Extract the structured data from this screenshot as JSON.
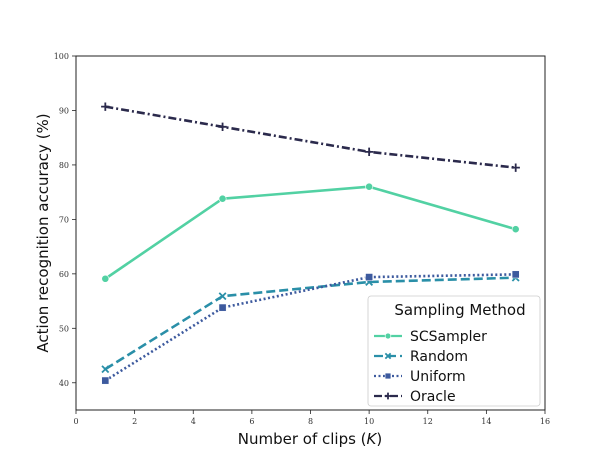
{
  "chart_data": {
    "type": "line",
    "xlabel": "Number of clips (K)",
    "ylabel": "Action recognition accuracy (%)",
    "xlim": [
      0,
      16
    ],
    "ylim": [
      35,
      100
    ],
    "xticks": [
      0,
      2,
      4,
      6,
      8,
      10,
      12,
      14,
      16
    ],
    "yticks": [
      40,
      50,
      60,
      70,
      80,
      90,
      100
    ],
    "grid": false,
    "legend": {
      "title": "Sampling Method",
      "placement": "lower-right"
    },
    "x": [
      1,
      5,
      10,
      15
    ],
    "series": [
      {
        "name": "SCSampler",
        "values": [
          59.1,
          73.8,
          76.0,
          68.2
        ],
        "color": "#52d1a3",
        "dash": "solid",
        "marker": "circle"
      },
      {
        "name": "Random",
        "values": [
          42.5,
          55.9,
          58.5,
          59.3
        ],
        "color": "#2a8fa8",
        "dash": "dashed",
        "marker": "x"
      },
      {
        "name": "Uniform",
        "values": [
          40.4,
          53.8,
          59.4,
          59.9
        ],
        "color": "#3d5a9e",
        "dash": "dotted",
        "marker": "square"
      },
      {
        "name": "Oracle",
        "values": [
          90.7,
          87.0,
          82.4,
          79.5
        ],
        "color": "#2b2a4c",
        "dash": "dashdot",
        "marker": "plus"
      }
    ]
  }
}
